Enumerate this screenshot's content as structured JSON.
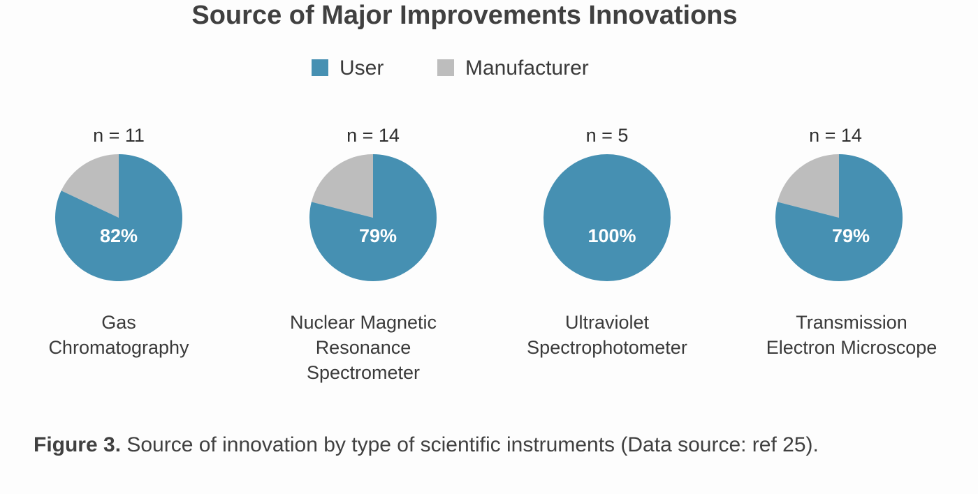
{
  "chart_data": {
    "type": "pie",
    "title": "Source of Major Improvements Innovations",
    "legend": [
      {
        "name": "User",
        "color": "#4690b2"
      },
      {
        "name": "Manufacturer",
        "color": "#bdbdbd"
      }
    ],
    "pies": [
      {
        "n_label": "n = 11",
        "category_lines": [
          "Gas",
          "Chromatography"
        ],
        "user_pct": 82,
        "user_label": "82%"
      },
      {
        "n_label": "n = 14",
        "category_lines": [
          "Nuclear Magnetic",
          "Resonance",
          "Spectrometer"
        ],
        "user_pct": 79,
        "user_label": "79%"
      },
      {
        "n_label": "n = 5",
        "category_lines": [
          "Ultraviolet",
          "Spectrophotometer"
        ],
        "user_pct": 100,
        "user_label": "100%"
      },
      {
        "n_label": "n = 14",
        "category_lines": [
          "Transmission",
          "Electron Microscope"
        ],
        "user_pct": 79,
        "user_label": "79%"
      }
    ]
  },
  "caption": {
    "bold": "Figure 3.",
    "text": " Source of innovation by type of scientific instruments (Data source: ref 25)."
  }
}
